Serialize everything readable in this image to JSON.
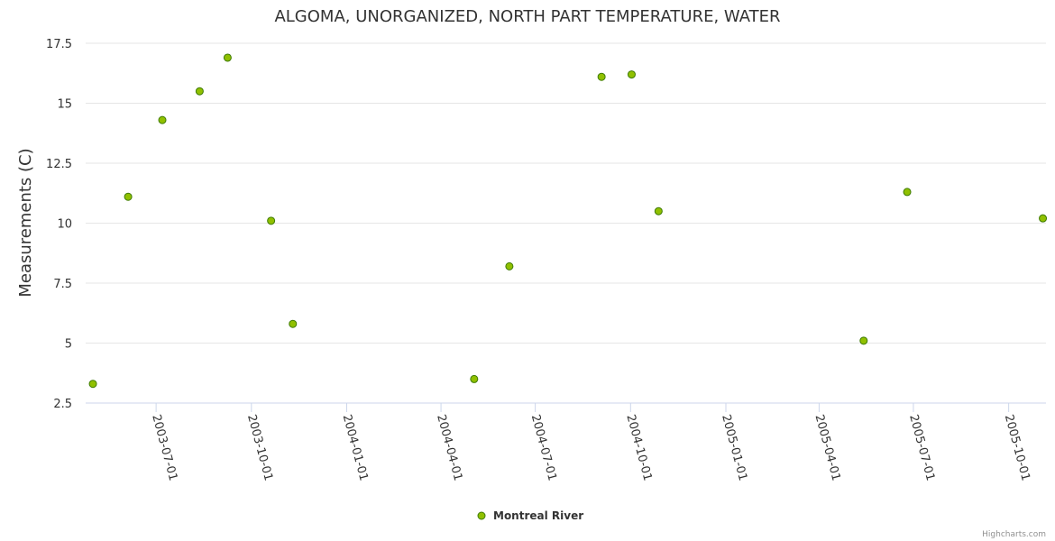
{
  "chart_data": {
    "type": "scatter",
    "title": "ALGOMA, UNORGANIZED, NORTH PART TEMPERATURE, WATER",
    "xlabel": "",
    "ylabel": "Measurements (C)",
    "ylim": [
      2.5,
      17.5
    ],
    "yticks": [
      2.5,
      5,
      7.5,
      10,
      12.5,
      15,
      17.5
    ],
    "yticklabels": [
      "2.5",
      "5",
      "7.5",
      "10",
      "12.5",
      "15",
      "17.5"
    ],
    "xlim": [
      "2003-04-24",
      "2005-11-06"
    ],
    "xticks": [
      "2003-07-01",
      "2003-10-01",
      "2004-01-01",
      "2004-04-01",
      "2004-07-01",
      "2004-10-01",
      "2005-01-01",
      "2005-04-01",
      "2005-07-01",
      "2005-10-01"
    ],
    "grid": true,
    "legend_position": "bottom-center",
    "series": [
      {
        "name": "Montreal River",
        "color": "#90c000",
        "border_color": "#3d7a00",
        "points": [
          {
            "x": "2003-05-01",
            "y": 3.3
          },
          {
            "x": "2003-06-04",
            "y": 11.1
          },
          {
            "x": "2003-07-07",
            "y": 14.3
          },
          {
            "x": "2003-08-12",
            "y": 15.5
          },
          {
            "x": "2003-09-08",
            "y": 16.9
          },
          {
            "x": "2003-10-20",
            "y": 10.1
          },
          {
            "x": "2003-11-10",
            "y": 5.8
          },
          {
            "x": "2004-05-03",
            "y": 3.5
          },
          {
            "x": "2004-06-06",
            "y": 8.2
          },
          {
            "x": "2004-09-03",
            "y": 16.1
          },
          {
            "x": "2004-10-02",
            "y": 16.2
          },
          {
            "x": "2004-10-28",
            "y": 10.5
          },
          {
            "x": "2005-05-14",
            "y": 5.1
          },
          {
            "x": "2005-06-25",
            "y": 11.3
          },
          {
            "x": "2005-11-03",
            "y": 10.2
          }
        ]
      }
    ]
  },
  "credits": "Highcharts.com"
}
